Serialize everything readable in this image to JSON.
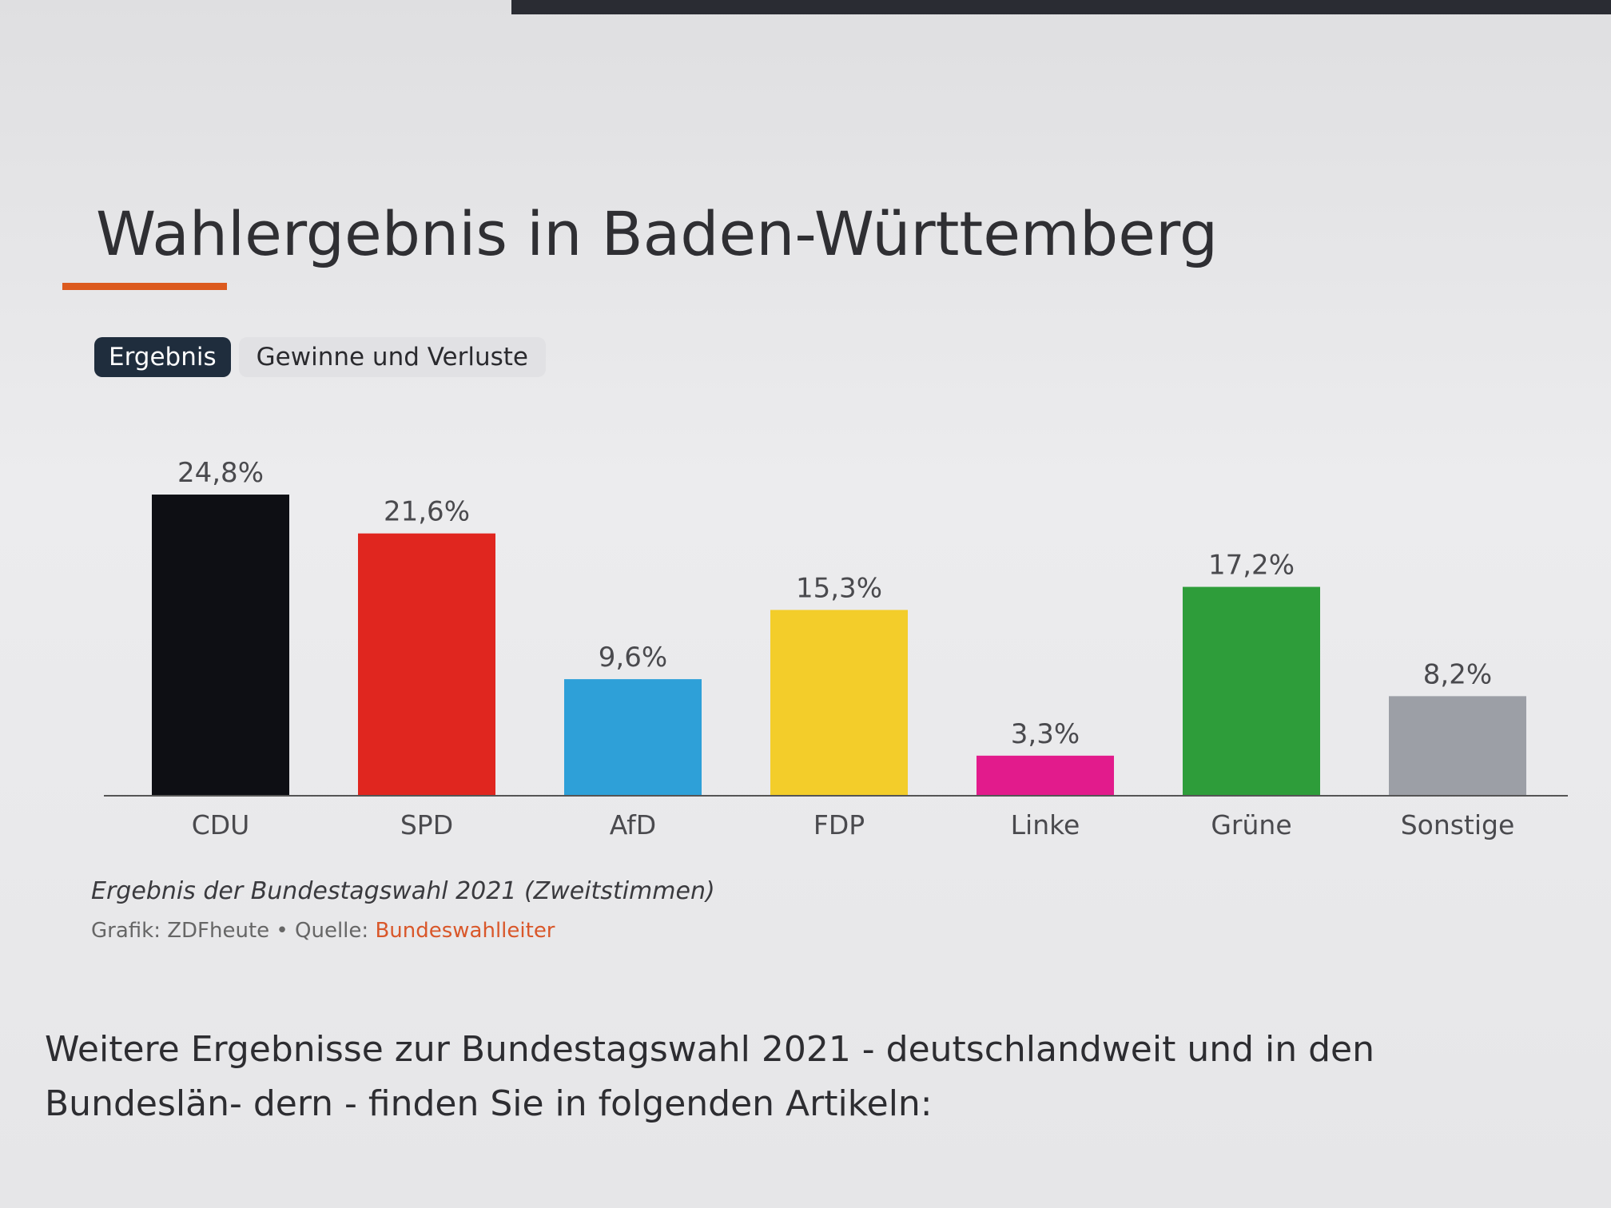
{
  "article": {
    "title": "Wahlergebnis in Baden-Württemberg",
    "tabs": [
      {
        "label": "Ergebnis",
        "active": true
      },
      {
        "label": "Gewinne und Verluste",
        "active": false
      }
    ],
    "caption": "Ergebnis der Bundestagswahl 2021 (Zweitstimmen)",
    "source_prefix": "Grafik: ZDFheute • Quelle: ",
    "source_link": "Bundeswahlleiter",
    "body_text": "Weitere Ergebnisse zur Bundestagswahl 2021 - deutschlandweit und in den Bundeslän- dern - finden Sie in folgenden Artikeln:"
  },
  "colors": {
    "accent": "#dc5a1e",
    "tab_active_bg": "#1f2d3d",
    "link": "#d9572a"
  },
  "chart_data": {
    "type": "bar",
    "title": "Wahlergebnis in Baden-Württemberg",
    "xlabel": "",
    "ylabel": "",
    "ylim": [
      0,
      25
    ],
    "grid": false,
    "categories": [
      "CDU",
      "SPD",
      "AfD",
      "FDP",
      "Linke",
      "Grüne",
      "Sonstige"
    ],
    "values": [
      24.8,
      21.6,
      9.6,
      15.3,
      3.3,
      17.2,
      8.2
    ],
    "value_labels": [
      "24,8%",
      "21,6%",
      "9,6%",
      "15,3%",
      "3,3%",
      "17,2%",
      "8,2%"
    ],
    "colors": [
      "#0e0f14",
      "#e0261f",
      "#2ea0d8",
      "#f3cd2a",
      "#e21b8c",
      "#2e9d3a",
      "#9c9fa6"
    ]
  }
}
